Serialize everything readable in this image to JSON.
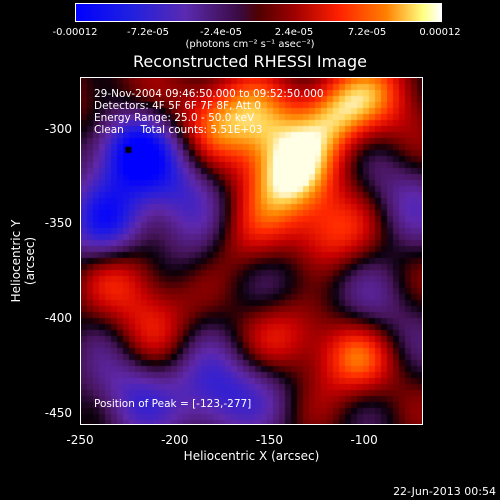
{
  "colorbar": {
    "ticks": [
      "-0.00012",
      "-7.2e-05",
      "-2.4e-05",
      "2.4e-05",
      "7.2e-05",
      "0.00012"
    ],
    "unit": "(photons cm⁻² s⁻¹ asec⁻²)"
  },
  "chart_data": {
    "type": "heatmap",
    "title": "Reconstructed RHESSI Image",
    "xlabel": "Heliocentric X (arcsec)",
    "ylabel": "Heliocentric Y (arcsec)",
    "xlim": [
      -250,
      -70
    ],
    "ylim": [
      -455,
      -272
    ],
    "xticks": [
      "-250",
      "-200",
      "-150",
      "-100"
    ],
    "yticks": [
      "-300",
      "-350",
      "-400",
      "-450"
    ],
    "zlim": [
      -0.00012,
      0.00012
    ],
    "blobs": [
      {
        "x": -225,
        "y": -310,
        "v": -0.00012
      },
      {
        "x": -235,
        "y": -350,
        "v": -9e-05
      },
      {
        "x": -200,
        "y": -330,
        "v": -6e-05
      },
      {
        "x": -180,
        "y": -440,
        "v": -8e-05
      },
      {
        "x": -225,
        "y": -440,
        "v": -6e-05
      },
      {
        "x": -130,
        "y": -375,
        "v": -4e-05
      },
      {
        "x": -95,
        "y": -400,
        "v": -4e-05
      },
      {
        "x": -80,
        "y": -335,
        "v": -4e-05
      },
      {
        "x": -150,
        "y": -430,
        "v": -3e-05
      },
      {
        "x": -140,
        "y": -325,
        "v": 0.00011
      },
      {
        "x": -115,
        "y": -290,
        "v": 0.0001
      },
      {
        "x": -155,
        "y": -300,
        "v": 8e-05
      },
      {
        "x": -120,
        "y": -355,
        "v": 8e-05
      },
      {
        "x": -180,
        "y": -290,
        "v": 7e-05
      },
      {
        "x": -105,
        "y": -420,
        "v": 8e-05
      },
      {
        "x": -140,
        "y": -410,
        "v": 6e-05
      },
      {
        "x": -225,
        "y": -375,
        "v": 6e-05
      },
      {
        "x": -85,
        "y": -280,
        "v": 5e-05
      },
      {
        "x": -210,
        "y": -400,
        "v": 4e-05
      },
      {
        "x": -240,
        "y": -285,
        "v": 4e-05
      },
      {
        "x": -165,
        "y": -360,
        "v": 4e-05
      },
      {
        "x": -190,
        "y": -365,
        "v": -3e-05
      }
    ],
    "annotations": [
      "29-Nov-2004 09:46:50.000 to 09:52:50.000",
      "Detectors: 4F 5F 6F 7F 8F, Att 0",
      "Energy Range: 25.0 - 50.0 keV",
      "Clean     Total counts: 5.51E+03"
    ],
    "peak_label": "Position of Peak = [-123,-277]"
  },
  "footer": {
    "date": "22-Jun-2013 00:54"
  }
}
